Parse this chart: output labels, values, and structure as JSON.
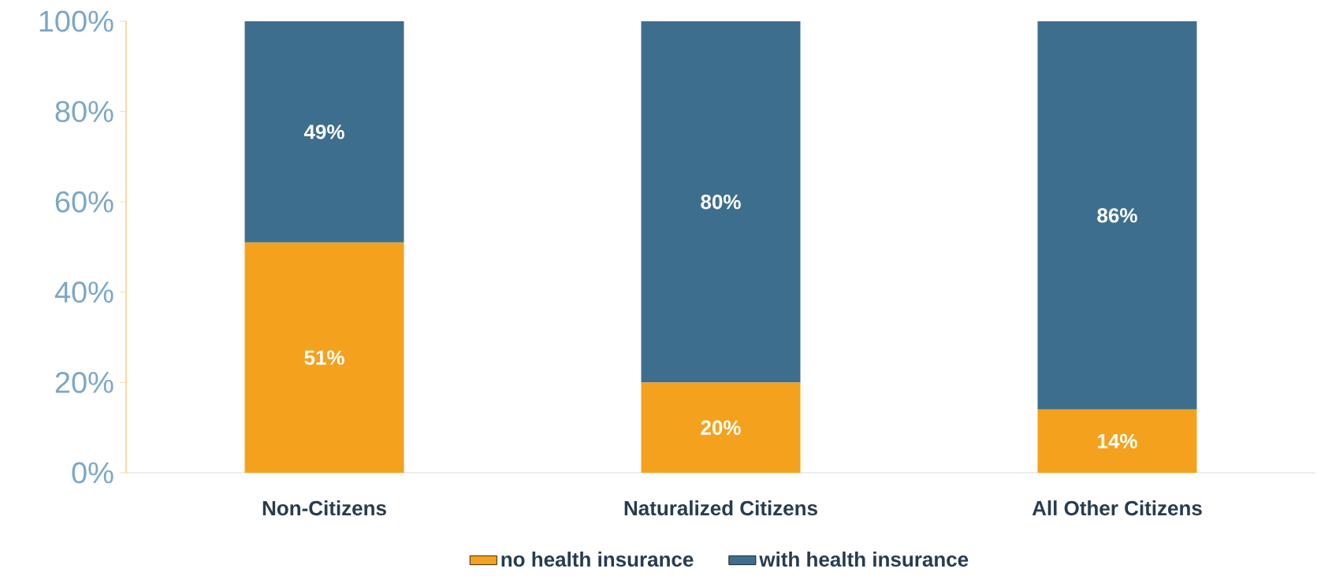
{
  "chart_data": {
    "type": "bar",
    "stacked": true,
    "categories": [
      "Non-Citizens",
      "Naturalized Citizens",
      "All Other Citizens"
    ],
    "series": [
      {
        "name": "no health insurance",
        "color": "#f4a21d",
        "values": [
          51,
          20,
          14
        ],
        "value_labels": [
          "51%",
          "20%",
          "14%"
        ]
      },
      {
        "name": "with health insurance",
        "color": "#3e6e8e",
        "values": [
          49,
          80,
          86
        ],
        "value_labels": [
          "49%",
          "80%",
          "86%"
        ]
      }
    ],
    "ylim": [
      0,
      100
    ],
    "yticks": [
      {
        "value": 0,
        "label": "0%"
      },
      {
        "value": 20,
        "label": "20%"
      },
      {
        "value": 40,
        "label": "40%"
      },
      {
        "value": 60,
        "label": "60%"
      },
      {
        "value": 80,
        "label": "80%"
      },
      {
        "value": 100,
        "label": "100%"
      }
    ],
    "grid": false,
    "legend": "bottom"
  }
}
